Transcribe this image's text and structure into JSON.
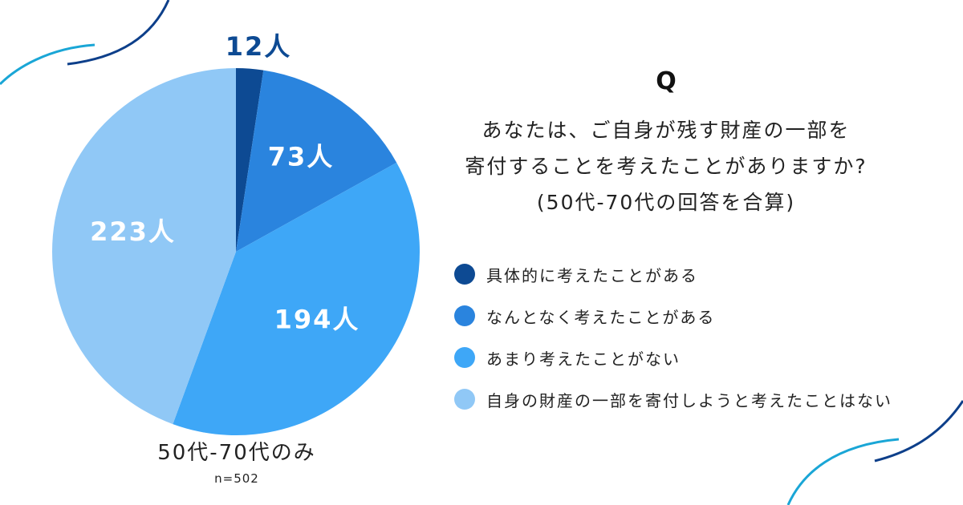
{
  "question": {
    "mark": "Q",
    "lines": [
      "あなたは、ご自身が残す財産の一部を",
      "寄付することを考えたことがありますか?",
      "(50代-70代の回答を合算)"
    ]
  },
  "caption": {
    "group": "50代-70代のみ",
    "sample": "n=502"
  },
  "colors": {
    "accent": "#0d4a93",
    "deco_dark": "#0d3f8a",
    "deco_light": "#1aa6d6"
  },
  "chart_data": {
    "type": "pie",
    "title": "",
    "unit": "人",
    "slices": [
      {
        "category": "具体的に考えたことがある",
        "value": 12,
        "label": "12人",
        "color": "#0d4a93"
      },
      {
        "category": "なんとなく考えたことがある",
        "value": 73,
        "label": "73人",
        "color": "#2a84de"
      },
      {
        "category": "あまり考えたことがない",
        "value": 194,
        "label": "194人",
        "color": "#3ea7f7"
      },
      {
        "category": "自身の財産の一部を寄付しようと考えたことはない",
        "value": 223,
        "label": "223人",
        "color": "#90c8f6"
      }
    ],
    "total": 502,
    "legend_position": "right"
  }
}
